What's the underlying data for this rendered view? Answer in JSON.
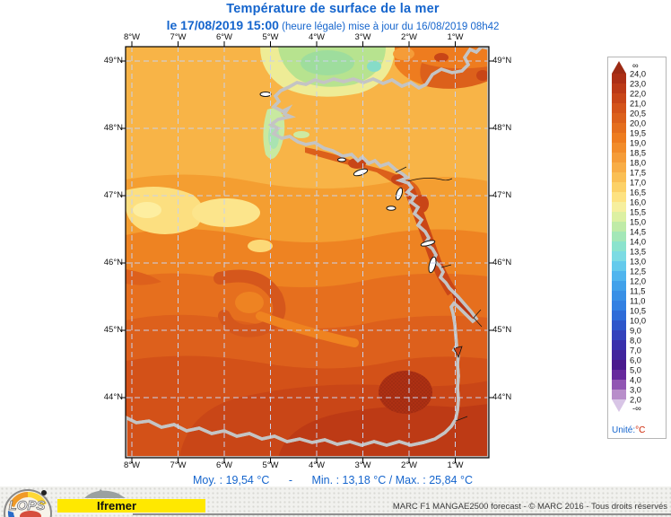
{
  "title": {
    "line1": "Température de surface de la mer",
    "date": "le 17/08/2019 15:00",
    "suffix": "(heure légale) mise à jour du 16/08/2019 08h42"
  },
  "axes": {
    "lon": [
      "8°W",
      "7°W",
      "6°W",
      "5°W",
      "4°W",
      "3°W",
      "2°W",
      "1°W"
    ],
    "lat": [
      "49°N",
      "48°N",
      "47°N",
      "46°N",
      "45°N",
      "44°N"
    ]
  },
  "colorbar": {
    "arrow_top_label": "∞",
    "arrow_top_color": "#9c2a14",
    "arrow_bottom_label": "-∞",
    "arrow_bottom_color": "#d8c5e6",
    "boundary_labels": [
      "24,0",
      "23,0",
      "22,0",
      "21,0",
      "20,5",
      "20,0",
      "19,5",
      "19,0",
      "18,5",
      "18,0",
      "17,5",
      "17,0",
      "16,5",
      "16,0",
      "15,5",
      "15,0",
      "14,5",
      "14,0",
      "13,5",
      "13,0",
      "12,5",
      "12,0",
      "11,5",
      "11,0",
      "10,5",
      "10,0",
      "9,0",
      "8,0",
      "7,0",
      "6,0",
      "5,0",
      "4,0",
      "3,0",
      "2,0"
    ],
    "cell_colors": [
      "#ac2f15",
      "#bb3916",
      "#c84517",
      "#d45319",
      "#dc601b",
      "#e56e1d",
      "#ee7c1f",
      "#f28c2a",
      "#f59c38",
      "#f8ad46",
      "#fabf54",
      "#fcd167",
      "#fde281",
      "#f6ef9e",
      "#dcf0a2",
      "#bfeba7",
      "#a3e7b7",
      "#8be3cd",
      "#7cdbe3",
      "#64caec",
      "#50b5ee",
      "#41a1ea",
      "#3990e6",
      "#3280e2",
      "#2f6cd8",
      "#2e56ca",
      "#3342bc",
      "#3930ac",
      "#41249d",
      "#49198d",
      "#67299d",
      "#9156b3",
      "#b88eca"
    ],
    "unit_label": "Unité:",
    "unit_value": "°C"
  },
  "stats": {
    "mean": "Moy. : 19,54 °C",
    "separator": "-",
    "minmax": "Min. : 13,18 °C / Max. : 25,84 °C"
  },
  "credit": "MARC F1 MANGAE2500 forecast - © MARC 2016 - Tous droits réservés",
  "logos": {
    "lops": "LOPS",
    "ifremer": "Ifremer"
  }
}
